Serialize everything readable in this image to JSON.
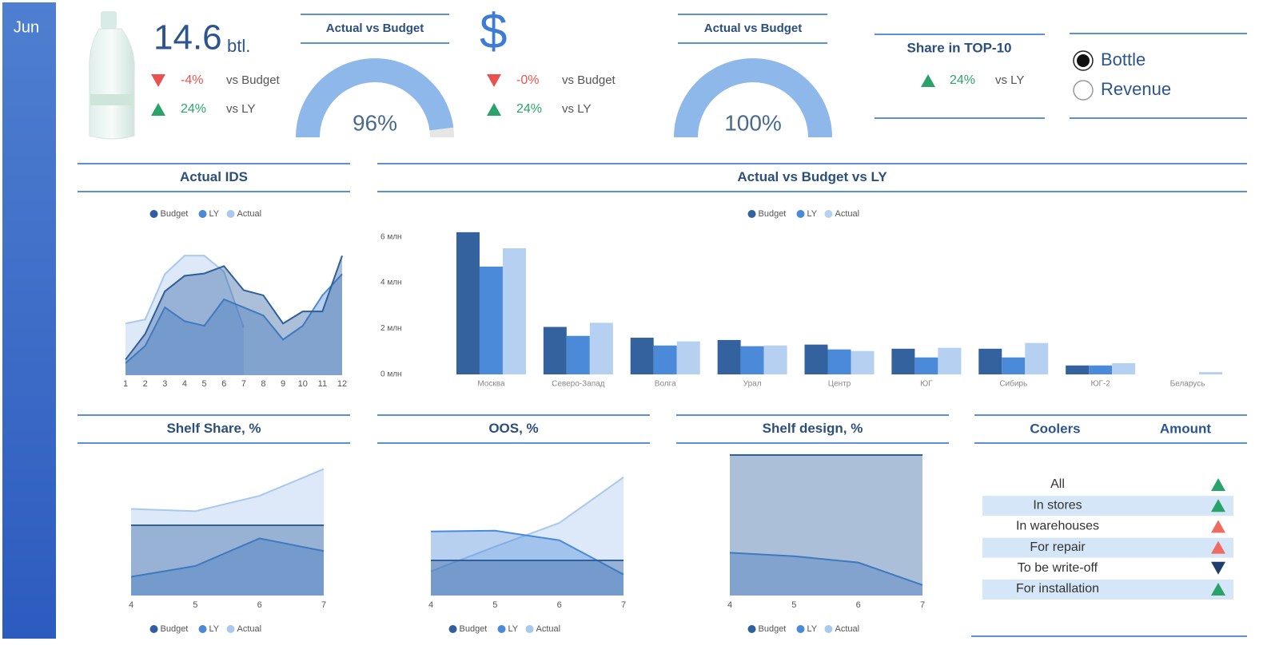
{
  "sidebar": {
    "month": "Jun"
  },
  "kpis": [
    {
      "value": "14.6",
      "unit": "btl.",
      "rows": [
        {
          "direction": "down",
          "color": "#e8534f",
          "delta": "-4%",
          "label": "vs Budget"
        },
        {
          "direction": "up",
          "color": "#2aa36b",
          "delta": "24%",
          "label": "vs LY"
        }
      ]
    },
    {
      "value": "$",
      "rows": [
        {
          "direction": "down",
          "color": "#e8534f",
          "delta": "-0%",
          "label": "vs Budget"
        },
        {
          "direction": "up",
          "color": "#2aa36b",
          "delta": "24%",
          "label": "vs LY"
        }
      ]
    },
    {
      "title": "Share in TOP-10",
      "rows": [
        {
          "direction": "up",
          "color": "#2aa36b",
          "delta": "24%",
          "label": "vs LY"
        }
      ]
    }
  ],
  "selector": {
    "options": [
      "Bottle",
      "Revenue"
    ],
    "selected": "Bottle"
  },
  "coolers": {
    "headers": [
      "Coolers",
      "Amount"
    ],
    "rows": [
      {
        "name": "All",
        "arrow": "up",
        "arrow_color": "#2aa36b"
      },
      {
        "name": "In stores",
        "arrow": "up",
        "arrow_color": "#2aa36b"
      },
      {
        "name": "In warehouses",
        "arrow": "up",
        "arrow_color": "#ef6a5f"
      },
      {
        "name": "For repair",
        "arrow": "up",
        "arrow_color": "#ef6a5f"
      },
      {
        "name": "To be write-off",
        "arrow": "down",
        "arrow_color": "#1f3e6e"
      },
      {
        "name": "For installation",
        "arrow": "up",
        "arrow_color": "#2aa36b"
      }
    ]
  },
  "chart_data": [
    {
      "type": "area",
      "title": "Actual IDS",
      "x": [
        1,
        2,
        3,
        4,
        5,
        6,
        7,
        8,
        9,
        10,
        11,
        12
      ],
      "xlim": [
        1,
        12
      ],
      "ylim": [
        9.17,
        11.56
      ],
      "series": [
        {
          "name": "Budget",
          "color": "#2f5f9e",
          "values": [
            9.44,
            9.89,
            10.63,
            10.9,
            10.94,
            11.07,
            10.65,
            10.56,
            10.07,
            10.28,
            10.28,
            11.25
          ]
        },
        {
          "name": "LY",
          "color": "#4a8ad8",
          "values": [
            9.38,
            9.68,
            10.35,
            10.11,
            10.03,
            10.49,
            10.35,
            10.21,
            9.79,
            10.03,
            10.56,
            10.93
          ]
        },
        {
          "name": "Actual",
          "color": "#a9c8ee",
          "values": [
            10.07,
            10.14,
            10.93,
            11.25,
            11.25,
            10.97,
            10.0,
            null,
            null,
            null,
            null,
            null
          ]
        }
      ]
    },
    {
      "type": "bar",
      "title": "Actual vs Budget vs LY",
      "categories": [
        "Москва",
        "Северо-Запад",
        "Волга",
        "Урал",
        "Центр",
        "ЮГ",
        "Сибирь",
        "ЮГ-2",
        "Беларусь"
      ],
      "ylim": [
        0,
        6.3
      ],
      "yticks": [
        {
          "value": 0,
          "label": "0 млн"
        },
        {
          "value": 2,
          "label": "2 млн"
        },
        {
          "value": 4,
          "label": "4 млн"
        },
        {
          "value": 6,
          "label": "6 млн"
        }
      ],
      "series": [
        {
          "name": "Budget",
          "color": "#34629f",
          "values": [
            6.2,
            2.07,
            1.6,
            1.5,
            1.3,
            1.12,
            1.12,
            0.39,
            null
          ]
        },
        {
          "name": "LY",
          "color": "#4a8ad8",
          "values": [
            4.7,
            1.68,
            1.26,
            1.23,
            1.09,
            0.74,
            0.74,
            0.39,
            null
          ]
        },
        {
          "name": "Actual",
          "color": "#b5d0f0",
          "values": [
            5.5,
            2.25,
            1.44,
            1.26,
            1.02,
            1.16,
            1.37,
            0.49,
            0.1
          ]
        }
      ]
    },
    {
      "type": "area",
      "title": "Shelf Share, %",
      "x": [
        4,
        5,
        6,
        7
      ],
      "xlim": [
        4,
        7
      ],
      "ylim": [
        10.5,
        13.5
      ],
      "series": [
        {
          "name": "Budget",
          "color": "#2f5f9e",
          "values": [
            12,
            12,
            12,
            12
          ]
        },
        {
          "name": "LY",
          "color": "#4a8ad8",
          "values": [
            10.9,
            11.13,
            11.72,
            11.45
          ]
        },
        {
          "name": "Actual",
          "color": "#a9c8ee",
          "values": [
            12.35,
            12.3,
            12.63,
            13.2
          ]
        }
      ]
    },
    {
      "type": "area",
      "title": "OOS, %",
      "x": [
        4,
        5,
        6,
        7
      ],
      "xlim": [
        4,
        7
      ],
      "ylim": [
        8,
        20
      ],
      "series": [
        {
          "name": "Budget",
          "color": "#2f5f9e",
          "values": [
            11,
            11,
            11,
            11
          ]
        },
        {
          "name": "LY",
          "color": "#4a8ad8",
          "values": [
            13.47,
            13.54,
            12.72,
            9.8
          ]
        },
        {
          "name": "Actual",
          "color": "#a9c8ee",
          "values": [
            10.07,
            12.18,
            14.2,
            18.1
          ]
        }
      ]
    },
    {
      "type": "area",
      "title": "Shelf design, %",
      "x": [
        4,
        5,
        6,
        7
      ],
      "xlim": [
        4,
        7
      ],
      "ylim": [
        65,
        85
      ],
      "series": [
        {
          "name": "Budget",
          "color": "#2f5f9e",
          "values": [
            85,
            85,
            85,
            85
          ]
        },
        {
          "name": "LY",
          "color": "#4a8ad8",
          "values": [
            71.1,
            70.6,
            69.7,
            66.5
          ]
        },
        {
          "name": "Actual",
          "color": "#a9c8ee",
          "values": [
            null,
            null,
            null,
            null
          ]
        }
      ]
    },
    {
      "type": "gauge",
      "title": "Actual vs Budget",
      "values": [
        96
      ],
      "value_labels": [
        "96%"
      ],
      "ylim": [
        0,
        100
      ],
      "color": "#8fb8ea"
    },
    {
      "type": "gauge",
      "title": "Actual vs Budget",
      "values": [
        100
      ],
      "value_labels": [
        "100%"
      ],
      "ylim": [
        0,
        100
      ],
      "color": "#8fb8ea"
    }
  ]
}
